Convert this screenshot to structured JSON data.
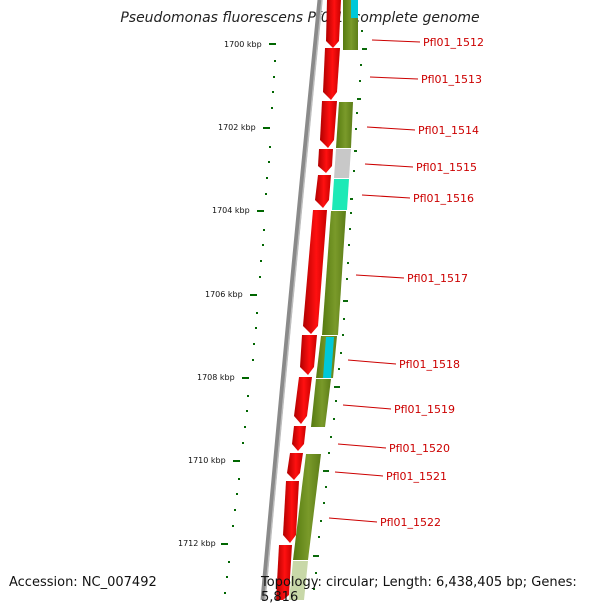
{
  "title": "Pseudomonas fluorescens Pf0-1, complete genome",
  "accession_label": "Accession: NC_007492",
  "topology_label": "Topology: circular; Length: 6,438,405 bp; Genes: 5,816",
  "ruler_ticks": [
    "1700 kbp",
    "1702 kbp",
    "1704 kbp",
    "1706 kbp",
    "1708 kbp",
    "1710 kbp",
    "1712 kbp"
  ],
  "genes": [
    "Pfl01_1512",
    "Pfl01_1513",
    "Pfl01_1514",
    "Pfl01_1515",
    "Pfl01_1516",
    "Pfl01_1517",
    "Pfl01_1518",
    "Pfl01_1519",
    "Pfl01_1520",
    "Pfl01_1521",
    "Pfl01_1522"
  ],
  "colors": {
    "cds": "#ee0000",
    "cog_olive": "#6b8e23",
    "cog_gray": "#c8c8c8",
    "cog_aqua": "#1de9b6",
    "cog_cyan": "#00c8d8",
    "backbone": "#777777",
    "tick": "#006600",
    "label": "#cc0000"
  }
}
